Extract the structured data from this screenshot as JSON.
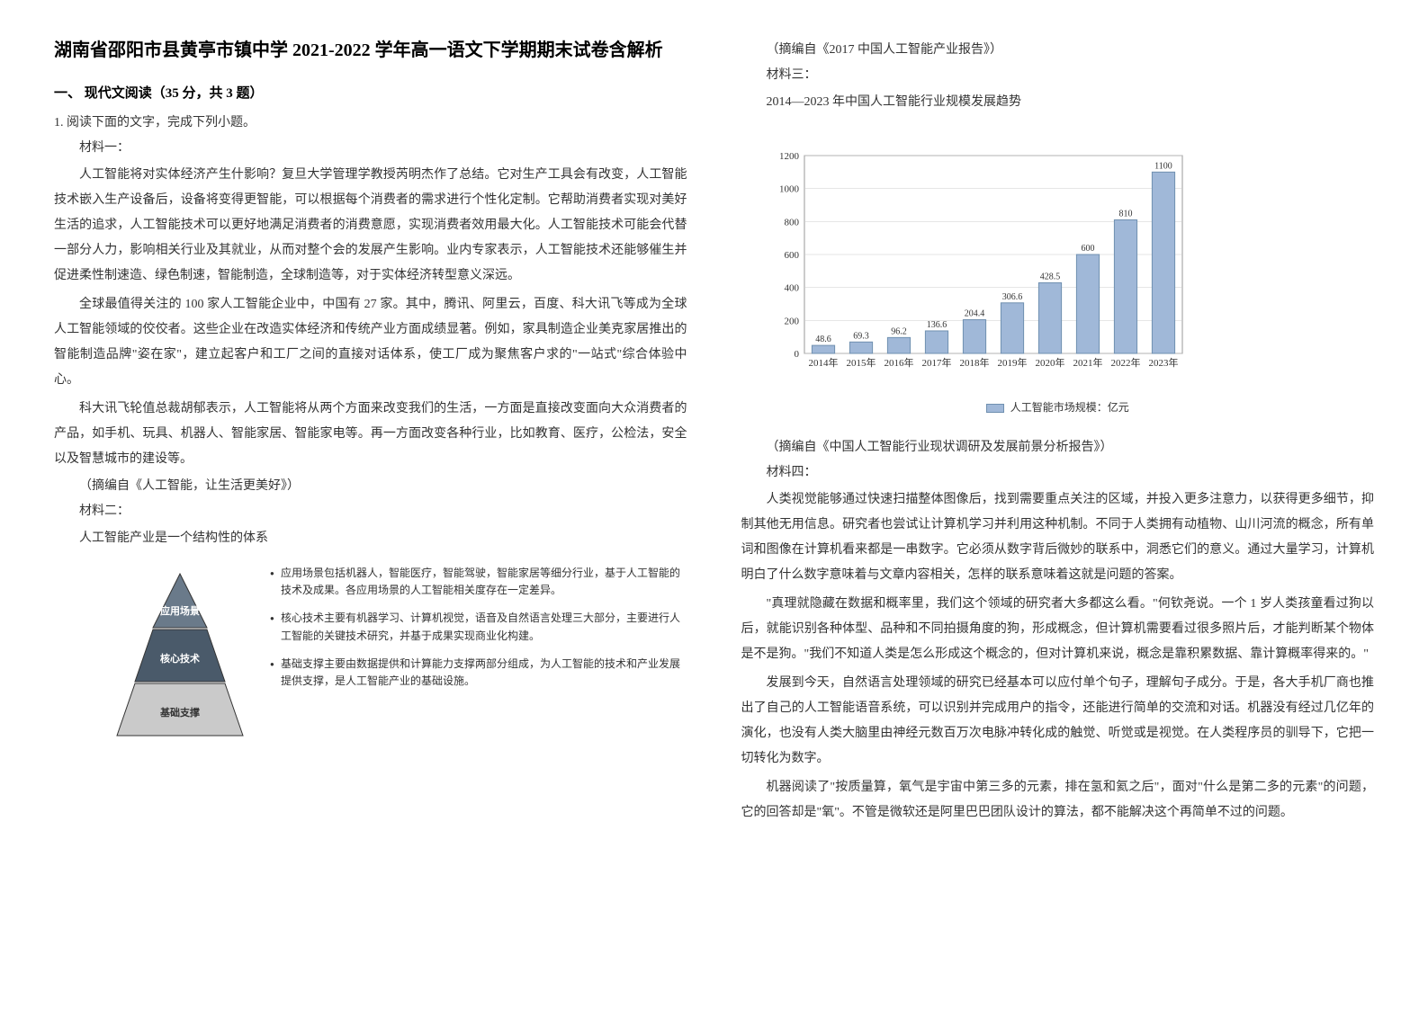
{
  "title": "湖南省邵阳市县黄亭市镇中学 2021-2022 学年高一语文下学期期末试卷含解析",
  "section_heading": "一、 现代文阅读（35 分，共 3 题）",
  "question": "1. 阅读下面的文字，完成下列小题。",
  "material1": {
    "heading": "材料一：",
    "p1": "人工智能将对实体经济产生什影响？复旦大学管理学教授芮明杰作了总结。它对生产工具会有改变，人工智能技术嵌入生产设备后，设备将变得更智能，可以根据每个消费者的需求进行个性化定制。它帮助消费者实现对美好生活的追求，人工智能技术可以更好地满足消费者的消费意愿，实现消费者效用最大化。人工智能技术可能会代替一部分人力，影响相关行业及其就业，从而对整个会的发展产生影响。业内专家表示，人工智能技术还能够催生并促进柔性制速造、绿色制速，智能制造，全球制造等，对于实体经济转型意义深远。",
    "p2": "全球最值得关注的 100 家人工智能企业中，中国有 27 家。其中，腾讯、阿里云，百度、科大讯飞等成为全球人工智能领域的佼佼者。这些企业在改造实体经济和传统产业方面成绩显著。例如，家具制造企业美克家居推出的智能制造品牌\"姿在家\"，建立起客户和工厂之间的直接对话体系，使工厂成为聚焦客户求的\"一站式\"综合体验中心。",
    "p3": "科大讯飞轮值总裁胡郁表示，人工智能将从两个方面来改变我们的生活，一方面是直接改变面向大众消费者的产品，如手机、玩具、机器人、智能家居、智能家电等。再一方面改变各种行业，比如教育、医疗，公检法，安全以及智慧城市的建设等。",
    "source": "（摘编自《人工智能，让生活更美好》）"
  },
  "material2": {
    "heading": "材料二：",
    "p1": "人工智能产业是一个结构性的体系",
    "diagram": {
      "layer1": "应用场景",
      "layer2": "核心技术",
      "layer3": "基础支撑",
      "label1": "应用场景包括机器人，智能医疗，智能驾驶，智能家居等细分行业，基于人工智能的技术及成果。各应用场景的人工智能相关度存在一定差异。",
      "label2": "核心技术主要有机器学习、计算机视觉，语音及自然语言处理三大部分，主要进行人工智能的关键技术研究，并基于成果实现商业化构建。",
      "label3": "基础支撑主要由数据提供和计算能力支撑两部分组成，为人工智能的技术和产业发展提供支撑，是人工智能产业的基础设施。",
      "layer_colors": {
        "layer1": "#6a7a8a",
        "layer2": "#4a5a6a",
        "layer3": "#cacaca"
      }
    },
    "source": "（摘编自《2017 中国人工智能产业报告》）"
  },
  "material3": {
    "heading": "材料三：",
    "chart_title": "2014—2023 年中国人工智能行业规模发展趋势",
    "chart": {
      "type": "bar",
      "categories": [
        "2014年",
        "2015年",
        "2016年",
        "2017年",
        "2018年",
        "2019年",
        "2020年",
        "2021年",
        "2022年",
        "2023年"
      ],
      "values": [
        48.6,
        69.3,
        96.2,
        136.6,
        204.4,
        306.6,
        428.5,
        600,
        810,
        1100
      ],
      "bar_color": "#a0b8d8",
      "bar_border": "#7090b0",
      "ylim": [
        0,
        1200
      ],
      "ytick_step": 200,
      "background_color": "#ffffff",
      "grid_color": "#cccccc",
      "legend_label": "人工智能市场规模：亿元",
      "title_fontsize": 14,
      "label_fontsize": 10
    },
    "source": "（摘编自《中国人工智能行业现状调研及发展前景分析报告》）"
  },
  "material4": {
    "heading": "材料四：",
    "p1": "人类视觉能够通过快速扫描整体图像后，找到需要重点关注的区域，并投入更多注意力，以获得更多细节，抑制其他无用信息。研究者也尝试让计算机学习并利用这种机制。不同于人类拥有动植物、山川河流的概念，所有单词和图像在计算机看来都是一串数字。它必须从数字背后微妙的联系中，洞悉它们的意义。通过大量学习，计算机明白了什么数字意味着与文章内容相关，怎样的联系意味着这就是问题的答案。",
    "p2": "\"真理就隐藏在数据和概率里，我们这个领域的研究者大多都这么看。\"何钦尧说。一个 1 岁人类孩童看过狗以后，就能识别各种体型、品种和不同拍摄角度的狗，形成概念，但计算机需要看过很多照片后，才能判断某个物体是不是狗。\"我们不知道人类是怎么形成这个概念的，但对计算机来说，概念是靠积累数据、靠计算概率得来的。\"",
    "p3": "发展到今天，自然语言处理领域的研究已经基本可以应付单个句子，理解句子成分。于是，各大手机厂商也推出了自己的人工智能语音系统，可以识别并完成用户的指令，还能进行简单的交流和对话。机器没有经过几亿年的演化，也没有人类大脑里由神经元数百万次电脉冲转化成的触觉、听觉或是视觉。在人类程序员的驯导下，它把一切转化为数字。",
    "p4": "机器阅读了\"按质量算，氧气是宇宙中第三多的元素，排在氢和氦之后\"，面对\"什么是第二多的元素\"的问题，它的回答却是\"氧\"。不管是微软还是阿里巴巴团队设计的算法，都不能解决这个再简单不过的问题。"
  }
}
